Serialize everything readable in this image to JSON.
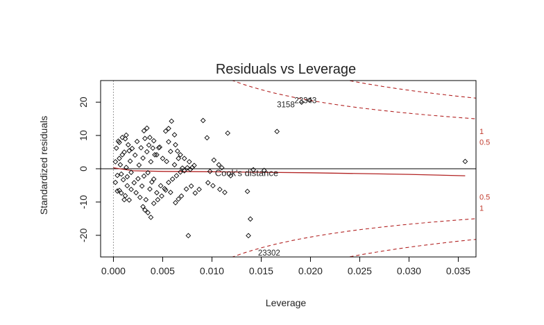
{
  "chart_data": {
    "type": "scatter",
    "title": "Residuals vs Leverage",
    "xlabel": "Leverage",
    "ylabel": "Standardized residuals",
    "xlim": [
      -0.0013,
      0.0368
    ],
    "ylim": [
      -26.5,
      26.5
    ],
    "x_ticks": [
      "0.000",
      "0.005",
      "0.010",
      "0.015",
      "0.020",
      "0.025",
      "0.030",
      "0.035"
    ],
    "y_ticks": [
      "-20",
      "-10",
      "0",
      "10",
      "20"
    ],
    "grid": false,
    "zero_line_x": 0,
    "zero_line_y": 0,
    "points": [
      [
        0.0002,
        -4.1
      ],
      [
        0.0003,
        6.2
      ],
      [
        0.0004,
        -2.0
      ],
      [
        0.0005,
        8.3
      ],
      [
        0.0006,
        -6.5
      ],
      [
        0.0006,
        3.1
      ],
      [
        0.0007,
        1.2
      ],
      [
        0.0008,
        -7.3
      ],
      [
        0.0009,
        9.4
      ],
      [
        0.001,
        -3.3
      ],
      [
        0.0011,
        5.0
      ],
      [
        0.0012,
        -8.1
      ],
      [
        0.0013,
        10.1
      ],
      [
        0.0013,
        0.4
      ],
      [
        0.0014,
        -5.1
      ],
      [
        0.0015,
        7.2
      ],
      [
        0.0016,
        -9.4
      ],
      [
        0.0017,
        2.3
      ],
      [
        0.0018,
        -1.1
      ],
      [
        0.0019,
        6.1
      ],
      [
        0.0002,
        2.1
      ],
      [
        0.0004,
        -6.7
      ],
      [
        0.0006,
        7.9
      ],
      [
        0.0008,
        -1.6
      ],
      [
        0.0009,
        4.2
      ],
      [
        0.0011,
        -9.3
      ],
      [
        0.0012,
        9.0
      ],
      [
        0.0014,
        -2.4
      ],
      [
        0.0016,
        5.4
      ],
      [
        0.0018,
        -6.2
      ],
      [
        0.0021,
        -4.2
      ],
      [
        0.0022,
        4.1
      ],
      [
        0.0023,
        -7.2
      ],
      [
        0.0024,
        8.2
      ],
      [
        0.0025,
        -3.0
      ],
      [
        0.0026,
        1.1
      ],
      [
        0.0027,
        -8.6
      ],
      [
        0.0028,
        6.3
      ],
      [
        0.0029,
        -5.2
      ],
      [
        0.003,
        3.2
      ],
      [
        0.0031,
        -2.2
      ],
      [
        0.0032,
        9.1
      ],
      [
        0.0033,
        -9.3
      ],
      [
        0.0034,
        5.1
      ],
      [
        0.0035,
        -1.2
      ],
      [
        0.0036,
        7.1
      ],
      [
        0.0037,
        -6.1
      ],
      [
        0.0038,
        2.1
      ],
      [
        0.0039,
        -4.0
      ],
      [
        0.004,
        6.2
      ],
      [
        0.0041,
        -3.1
      ],
      [
        0.0042,
        4.2
      ],
      [
        0.0044,
        -7.2
      ],
      [
        0.0046,
        6.3
      ],
      [
        0.0048,
        -5.1
      ],
      [
        0.005,
        3.1
      ],
      [
        0.0052,
        -6.0
      ],
      [
        0.0054,
        2.2
      ],
      [
        0.0056,
        -4.1
      ],
      [
        0.0058,
        5.2
      ],
      [
        0.006,
        -3.1
      ],
      [
        0.0062,
        1.2
      ],
      [
        0.0064,
        -2.1
      ],
      [
        0.0066,
        3.1
      ],
      [
        0.0068,
        -1.0
      ],
      [
        0.007,
        0.2
      ],
      [
        0.0072,
        -0.6
      ],
      [
        0.0075,
        0.3
      ],
      [
        0.0078,
        -0.2
      ],
      [
        0.008,
        0.4
      ],
      [
        0.0031,
        11.4
      ],
      [
        0.0034,
        12.2
      ],
      [
        0.0037,
        9.4
      ],
      [
        0.0041,
        8.4
      ],
      [
        0.0044,
        4.2
      ],
      [
        0.0047,
        6.5
      ],
      [
        0.0053,
        11.3
      ],
      [
        0.0056,
        12.1
      ],
      [
        0.0059,
        14.3
      ],
      [
        0.0062,
        10.2
      ],
      [
        0.0065,
        5.3
      ],
      [
        0.0068,
        4.2
      ],
      [
        0.0072,
        3.1
      ],
      [
        0.0077,
        2.1
      ],
      [
        0.0082,
        1.0
      ],
      [
        0.0091,
        14.5
      ],
      [
        0.0095,
        9.3
      ],
      [
        0.0098,
        -0.8
      ],
      [
        0.0102,
        2.6
      ],
      [
        0.0107,
        1.2
      ],
      [
        0.011,
        0.3
      ],
      [
        0.0116,
        10.7
      ],
      [
        0.0136,
        -6.8
      ],
      [
        0.0139,
        -15.1
      ],
      [
        0.0137,
        -20.1
      ],
      [
        0.0142,
        -0.3
      ],
      [
        0.0153,
        -0.5
      ],
      [
        0.0166,
        11.2
      ],
      [
        0.0076,
        -20.1
      ],
      [
        0.003,
        -11.4
      ],
      [
        0.0032,
        -12.4
      ],
      [
        0.0035,
        -13.2
      ],
      [
        0.0038,
        -14.6
      ],
      [
        0.0041,
        -10.4
      ],
      [
        0.0045,
        -9.3
      ],
      [
        0.0049,
        -8.2
      ],
      [
        0.0053,
        -6.4
      ],
      [
        0.0058,
        -7.1
      ],
      [
        0.0063,
        -10.2
      ],
      [
        0.0066,
        -9.1
      ],
      [
        0.0069,
        -8.2
      ],
      [
        0.0074,
        -6.1
      ],
      [
        0.0079,
        -5.2
      ],
      [
        0.0083,
        -7.3
      ],
      [
        0.0087,
        -6.2
      ],
      [
        0.0096,
        -4.2
      ],
      [
        0.0101,
        -5.1
      ],
      [
        0.0108,
        -6.2
      ],
      [
        0.0113,
        -7.1
      ],
      [
        0.0119,
        -2.1
      ],
      [
        0.0199,
        20.6
      ],
      [
        0.0191,
        20.0
      ],
      [
        0.0357,
        2.2
      ],
      [
        0.0063,
        7.2
      ],
      [
        0.0056,
        8.1
      ]
    ],
    "point_labels": [
      {
        "x": 0.0195,
        "y": 20.6,
        "text": "23343"
      },
      {
        "x": 0.0175,
        "y": 19.3,
        "text": "3158"
      },
      {
        "x": 0.0158,
        "y": -25.2,
        "text": "23302"
      }
    ],
    "cooks_annotation": "Cook's distance",
    "cooks_levels": [
      "0.5",
      "1"
    ],
    "contour_labels": [
      {
        "text": "1",
        "y": 11.3
      },
      {
        "text": "0.5",
        "y": 8.0
      },
      {
        "text": "0.5",
        "y": -8.4
      },
      {
        "text": "1",
        "y": -11.8
      }
    ],
    "loess": [
      [
        0.0,
        0.3
      ],
      [
        0.002,
        -0.6
      ],
      [
        0.005,
        -0.8
      ],
      [
        0.01,
        -0.9
      ],
      [
        0.02,
        -1.2
      ],
      [
        0.03,
        -1.7
      ],
      [
        0.0357,
        -2.1
      ]
    ],
    "colors": {
      "points": "#000000",
      "contours": "#b22222",
      "loess": "#b22222",
      "axes": "#000000"
    }
  }
}
